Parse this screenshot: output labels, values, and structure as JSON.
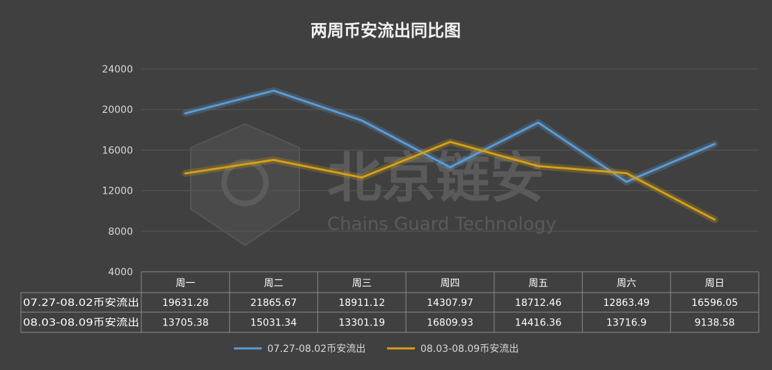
{
  "chart_data": {
    "type": "line",
    "title": "两周币安流出同比图",
    "categories": [
      "周一",
      "周二",
      "周三",
      "周四",
      "周五",
      "周六",
      "周日"
    ],
    "ylim": [
      4000,
      24000
    ],
    "yticks": [
      "24000",
      "20000",
      "16000",
      "12000",
      "8000",
      "4000"
    ],
    "grid": true,
    "legend_position": "bottom",
    "series": [
      {
        "name": "07.27-08.02币安流出",
        "color": "#5b9bd5",
        "values": [
          19631.28,
          21865.67,
          18911.12,
          14307.97,
          18712.46,
          12863.49,
          16596.05
        ],
        "labels": [
          "19631.28",
          "21865.67",
          "18911.12",
          "14307.97",
          "18712.46",
          "12863.49",
          "16596.05"
        ]
      },
      {
        "name": "08.03-08.09币安流出",
        "color": "#d4a017",
        "values": [
          13705.38,
          15031.34,
          13301.19,
          16809.93,
          14416.36,
          13716.9,
          9138.58
        ],
        "labels": [
          "13705.38",
          "15031.34",
          "13301.19",
          "16809.93",
          "14416.36",
          "13716.9",
          "9138.58"
        ]
      }
    ]
  },
  "watermark": {
    "text_cn": "北京链安",
    "text_en": "Chains Guard Technology"
  }
}
